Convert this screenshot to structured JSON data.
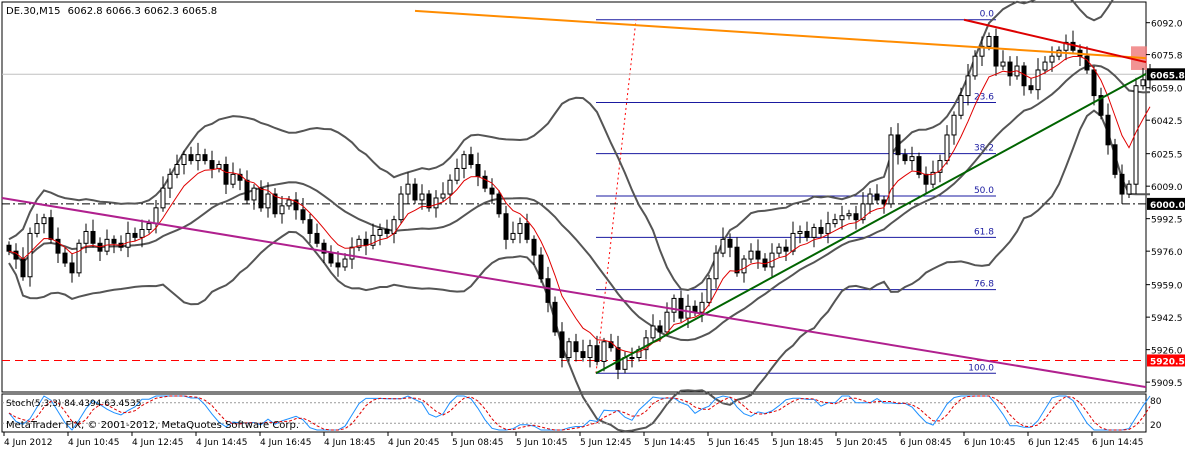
{
  "header": {
    "symbol": "DE.30,M15",
    "ohlc": "6062.8 6066.3 6062.3 6065.8"
  },
  "indicator": {
    "label": "Stoch(5,3,3) 84.4394 63.4535",
    "levels": [
      "80",
      "20"
    ]
  },
  "copyright": "MetaTrader FIX, © 2001-2012, MetaQuotes Software Corp.",
  "colors": {
    "bollinger": "#555555",
    "ma": "#e00000",
    "stoch_main": "#1e90ff",
    "stoch_signal": "#e00000",
    "trend_orange": "#ff8c00",
    "trend_red": "#dd0000",
    "trend_green": "#006400",
    "trend_magenta": "#b0208e",
    "fib": "#1a1aa0",
    "support": "#ff0000"
  },
  "chart_data": {
    "type": "candlestick",
    "title": "DE.30,M15",
    "y_tick_labels": [
      "6092.0",
      "6075.8",
      "6059.0",
      "6042.5",
      "6025.5",
      "6009.0",
      "5992.5",
      "5976.0",
      "5959.0",
      "5942.5",
      "5926.0",
      "5909.5"
    ],
    "ylim": [
      5905,
      6102
    ],
    "price_label_last": "6065.8",
    "price_label_hline": "6000.0",
    "price_label_support": "5920.5",
    "x_tick_labels": [
      "4 Jun 2012",
      "4 Jun 10:45",
      "4 Jun 12:45",
      "4 Jun 14:45",
      "4 Jun 16:45",
      "4 Jun 18:45",
      "4 Jun 20:45",
      "5 Jun 08:45",
      "5 Jun 10:45",
      "5 Jun 12:45",
      "5 Jun 14:45",
      "5 Jun 16:45",
      "5 Jun 18:45",
      "5 Jun 20:45",
      "6 Jun 08:45",
      "6 Jun 10:45",
      "6 Jun 12:45",
      "6 Jun 14:45"
    ],
    "fibonacci": {
      "levels": [
        {
          "label": "0.0",
          "price": 6093.5
        },
        {
          "label": "23.6",
          "price": 6051.5
        },
        {
          "label": "38.2",
          "price": 6025.5
        },
        {
          "label": "50.0",
          "price": 6004.0
        },
        {
          "label": "61.8",
          "price": 5983.0
        },
        {
          "label": "76.8",
          "price": 5956.5
        },
        {
          "label": "100.0",
          "price": 5914.0
        }
      ]
    },
    "closes": [
      5976,
      5972,
      5963,
      5985,
      5990,
      5993,
      5982,
      5975,
      5970,
      5965,
      5980,
      5986,
      5980,
      5976,
      5982,
      5980,
      5978,
      5985,
      5983,
      5987,
      5990,
      5998,
      6008,
      6015,
      6020,
      6025,
      6022,
      6025,
      6022,
      6018,
      6020,
      6010,
      6015,
      6012,
      6002,
      6008,
      5998,
      6005,
      5995,
      5999,
      6002,
      5997,
      5992,
      5985,
      5980,
      5975,
      5970,
      5968,
      5972,
      5978,
      5982,
      5979,
      5984,
      5987,
      5985,
      5992,
      6005,
      6010,
      6002,
      6005,
      5998,
      6003,
      6005,
      6012,
      6018,
      6025,
      6020,
      6014,
      6008,
      6005,
      5995,
      5982,
      5985,
      5990,
      5982,
      5974,
      5962,
      5950,
      5935,
      5922,
      5930,
      5925,
      5922,
      5928,
      5920,
      5930,
      5927,
      5916,
      5922,
      5922,
      5926,
      5932,
      5938,
      5935,
      5945,
      5952,
      5942,
      5948,
      5945,
      5950,
      5962,
      5975,
      5982,
      5978,
      5965,
      5972,
      5976,
      5972,
      5968,
      5975,
      5978,
      5976,
      5985,
      5986,
      5983,
      5988,
      5985,
      5990,
      5992,
      5994,
      5995,
      5992,
      6000,
      6005,
      6002,
      6000,
      6035,
      6025,
      6022,
      6024,
      6015,
      6010,
      6016,
      6022,
      6035,
      6045,
      6055,
      6065,
      6075,
      6080,
      6085,
      6070,
      6072,
      6065,
      6070,
      6060,
      6058,
      6068,
      6072,
      6075,
      6078,
      6082,
      6078,
      6075,
      6068,
      6055,
      6045,
      6030,
      6015,
      6005,
      6010,
      6060,
      6063,
      6068
    ]
  }
}
